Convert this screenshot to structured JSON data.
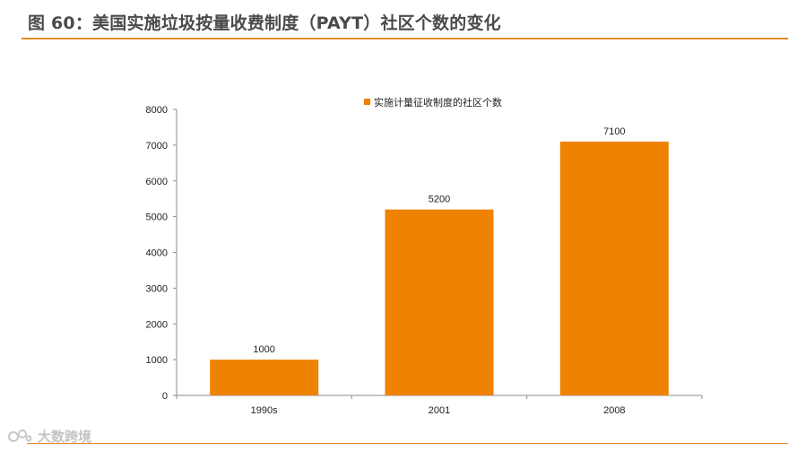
{
  "header": {
    "title": "图 60：美国实施垃圾按量收费制度（PAYT）社区个数的变化"
  },
  "watermark": {
    "text": "大数跨境",
    "icon": "brand-logo-icon"
  },
  "colors": {
    "bar": "#ef8200",
    "accent_line": "#e08a1e",
    "axis": "#8c8c8c"
  },
  "chart_data": {
    "type": "bar",
    "title": "",
    "xlabel": "",
    "ylabel": "",
    "categories": [
      "1990s",
      "2001",
      "2008"
    ],
    "series": [
      {
        "name": "实施计量征收制度的社区个数",
        "values": [
          1000,
          5200,
          7100
        ]
      }
    ],
    "ylim": [
      0,
      8000
    ],
    "yticks": [
      0,
      1000,
      2000,
      3000,
      4000,
      5000,
      6000,
      7000,
      8000
    ],
    "data_labels": [
      "1000",
      "5200",
      "7100"
    ],
    "legend": "top-center",
    "grid": false
  }
}
